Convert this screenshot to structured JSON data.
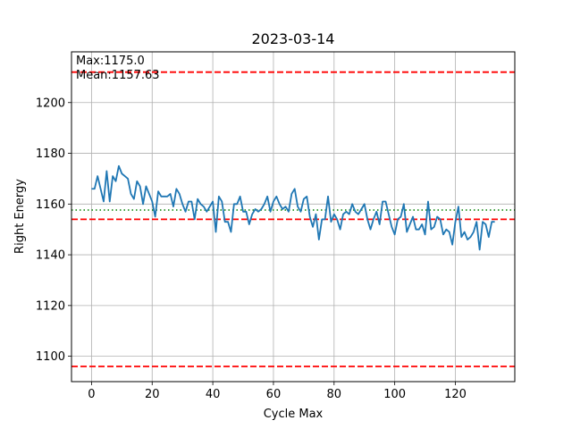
{
  "chart_data": {
    "type": "line",
    "title": "2023-03-14",
    "xlabel": "Cycle Max",
    "ylabel": "Right Energy",
    "xlim": [
      -6.6,
      139.6
    ],
    "ylim": [
      1090,
      1220
    ],
    "xticks": [
      0,
      20,
      40,
      60,
      80,
      100,
      120
    ],
    "yticks": [
      1100,
      1120,
      1140,
      1160,
      1180,
      1200
    ],
    "grid": true,
    "annotations": {
      "max_text": "Max:1175.0",
      "mean_text": "Mean:1157.63"
    },
    "reference_lines": [
      {
        "y": 1212,
        "style": "dashed",
        "color": "#ff0000"
      },
      {
        "y": 1154,
        "style": "dashed",
        "color": "#ff0000"
      },
      {
        "y": 1096,
        "style": "dashed",
        "color": "#ff0000"
      },
      {
        "y": 1157.63,
        "style": "dotted",
        "color": "#008000"
      }
    ],
    "series": [
      {
        "color": "#1f77b4",
        "x_start": 0,
        "values": [
          1166,
          1166,
          1171,
          1166,
          1161,
          1173,
          1161,
          1171,
          1169,
          1175,
          1172,
          1171,
          1170,
          1164,
          1162,
          1169,
          1167,
          1160,
          1167,
          1164,
          1161,
          1155,
          1165,
          1163,
          1163,
          1163,
          1164,
          1159,
          1166,
          1164,
          1160,
          1157,
          1161,
          1161,
          1154,
          1162,
          1160,
          1159,
          1157,
          1159,
          1161,
          1149,
          1163,
          1161,
          1153,
          1153,
          1149,
          1160,
          1160,
          1163,
          1157,
          1157,
          1152,
          1156,
          1158,
          1157,
          1158,
          1160,
          1163,
          1157,
          1161,
          1163,
          1160,
          1158,
          1159,
          1157,
          1164,
          1166,
          1159,
          1157,
          1162,
          1163,
          1155,
          1151,
          1156,
          1146,
          1154,
          1154,
          1163,
          1153,
          1156,
          1154,
          1150,
          1156,
          1157,
          1156,
          1160,
          1157,
          1156,
          1158,
          1160,
          1154,
          1150,
          1154,
          1157,
          1152,
          1161,
          1161,
          1156,
          1151,
          1148,
          1154,
          1155,
          1160,
          1149,
          1152,
          1155,
          1150,
          1150,
          1152,
          1148,
          1161,
          1150,
          1151,
          1155,
          1154,
          1148,
          1150,
          1149,
          1144,
          1153,
          1159,
          1147,
          1149,
          1146,
          1147,
          1149,
          1153,
          1142,
          1153,
          1152,
          1147,
          1153,
          1153
        ]
      }
    ]
  }
}
